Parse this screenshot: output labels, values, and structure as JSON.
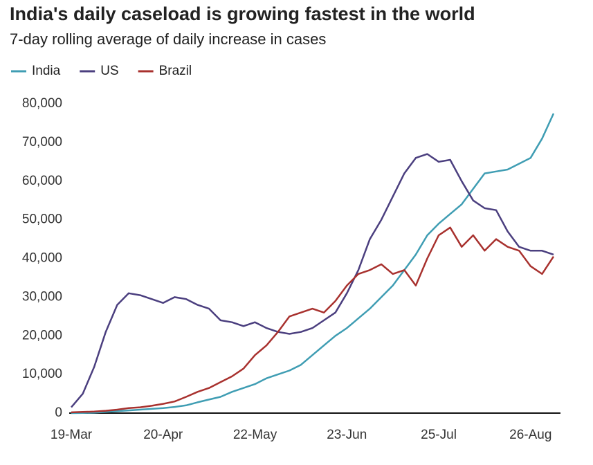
{
  "chart_data": {
    "type": "line",
    "title": "India's daily caseload is growing fastest in the world",
    "subtitle": "7-day rolling average of daily increase in cases",
    "categories": [
      "19-Mar",
      null,
      null,
      null,
      null,
      null,
      null,
      null,
      "20-Apr",
      null,
      null,
      null,
      null,
      null,
      null,
      null,
      "22-May",
      null,
      null,
      null,
      null,
      null,
      null,
      null,
      "23-Jun",
      null,
      null,
      null,
      null,
      null,
      null,
      null,
      "25-Jul",
      null,
      null,
      null,
      null,
      null,
      null,
      null,
      "26-Aug",
      null,
      null
    ],
    "series": [
      {
        "name": "India",
        "color": "#3f9db3",
        "values": [
          0,
          50,
          100,
          300,
          500,
          700,
          900,
          1100,
          1300,
          1600,
          2000,
          2800,
          3500,
          4200,
          5500,
          6500,
          7500,
          9000,
          10000,
          11000,
          12500,
          15000,
          17500,
          20000,
          22000,
          24500,
          27000,
          30000,
          33000,
          37000,
          41000,
          46000,
          49000,
          51500,
          54000,
          58000,
          62000,
          62500,
          63000,
          64500,
          66000,
          71000,
          77500
        ]
      },
      {
        "name": "US",
        "color": "#4b3f7f",
        "values": [
          1500,
          5000,
          12000,
          21000,
          28000,
          31000,
          30500,
          29500,
          28500,
          30000,
          29500,
          28000,
          27000,
          24000,
          23500,
          22500,
          23500,
          22000,
          21000,
          20500,
          21000,
          22000,
          24000,
          26000,
          31000,
          37000,
          45000,
          50000,
          56000,
          62000,
          66000,
          67000,
          65000,
          65500,
          60000,
          55000,
          53000,
          52500,
          47000,
          43000,
          42000,
          42000,
          41000
        ]
      },
      {
        "name": "Brazil",
        "color": "#a8312e",
        "values": [
          200,
          300,
          400,
          600,
          900,
          1300,
          1500,
          1900,
          2400,
          3000,
          4200,
          5500,
          6500,
          8000,
          9500,
          11500,
          15000,
          17500,
          21000,
          25000,
          26000,
          27000,
          26000,
          29000,
          33000,
          36000,
          37000,
          38500,
          36000,
          37000,
          33000,
          40000,
          46000,
          48000,
          43000,
          46000,
          42000,
          45000,
          43000,
          42000,
          38000,
          36000,
          40500
        ]
      }
    ],
    "ylim": [
      0,
      80000
    ],
    "yticks": [
      0,
      {
        "value": 10000,
        "label": "10,000"
      },
      {
        "value": 20000,
        "label": "20,000"
      },
      {
        "value": 30000,
        "label": "30,000"
      },
      {
        "value": 40000,
        "label": "40,000"
      },
      {
        "value": 50000,
        "label": "50,000"
      },
      {
        "value": 60000,
        "label": "60,000"
      },
      {
        "value": 70000,
        "label": "70,000"
      },
      {
        "value": 80000,
        "label": "80,000"
      }
    ],
    "legend": "top-left",
    "grid": false
  }
}
